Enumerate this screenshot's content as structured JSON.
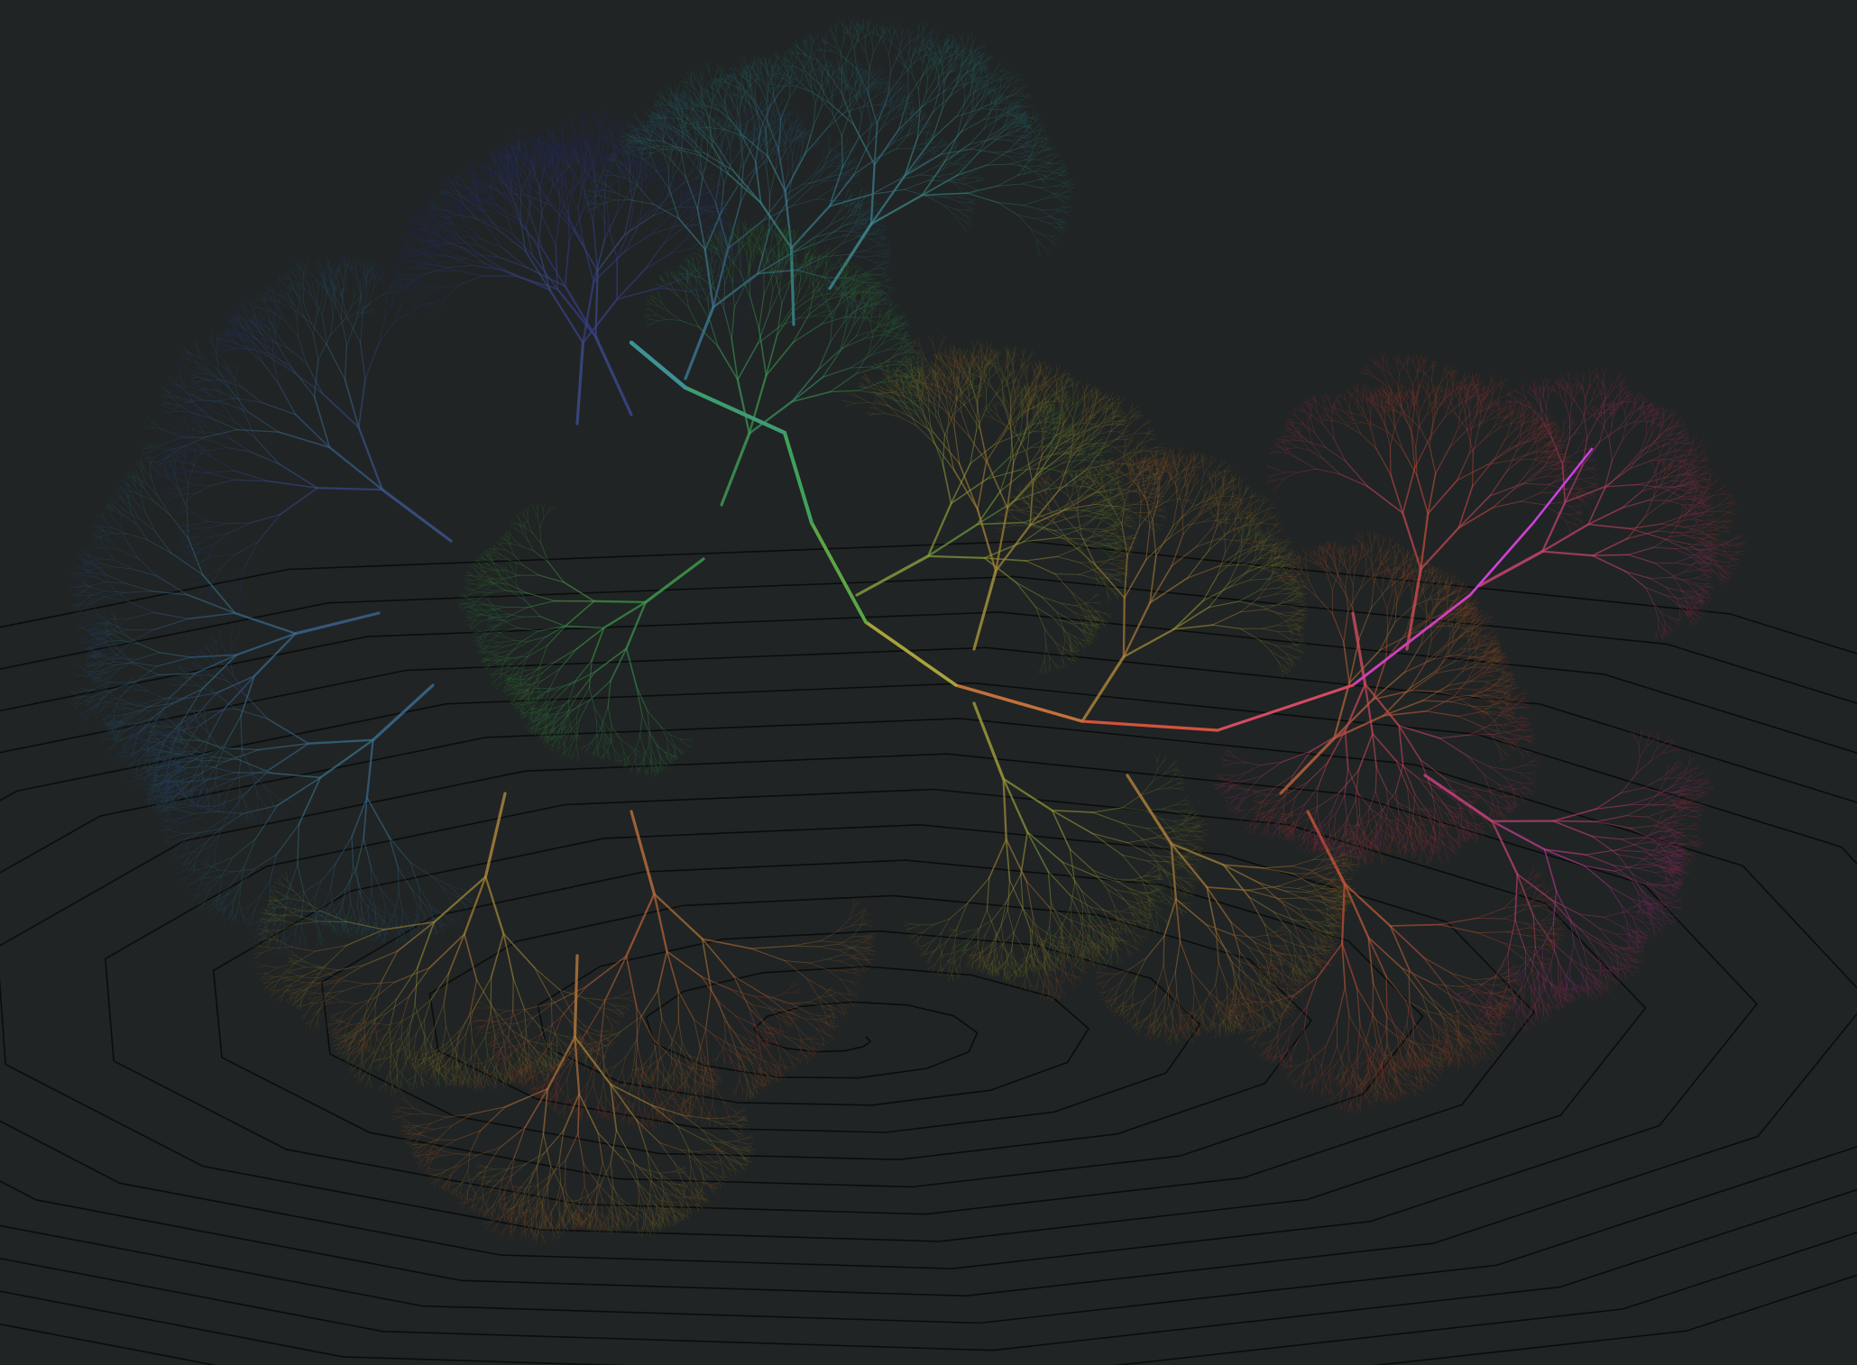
{
  "scene": {
    "background_color": "#202424",
    "floor_line_color": "#0a0d0c",
    "subject": "fractal-branching-tree",
    "branch_colors": [
      "#3b3f8f",
      "#3f8f9a",
      "#3fa64a",
      "#a7a23c",
      "#d4503c",
      "#d43fb0",
      "#c844e8"
    ]
  }
}
